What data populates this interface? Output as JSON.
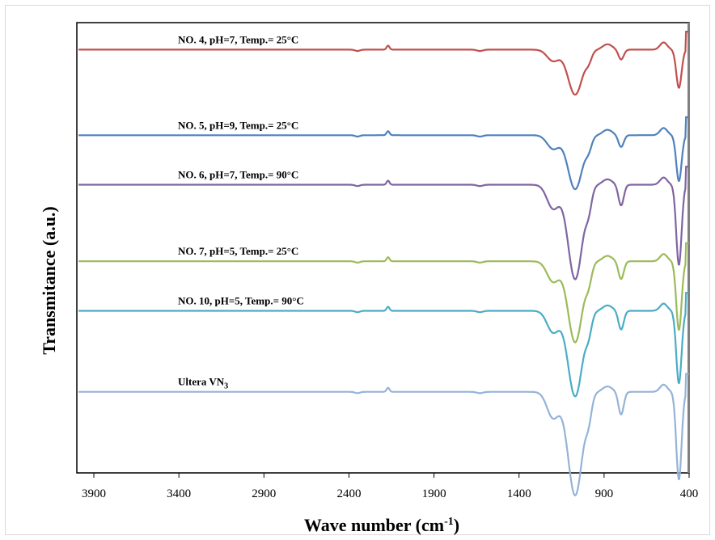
{
  "chart_data": {
    "type": "line",
    "title": "",
    "xlabel": "Wave number (cm",
    "xlabel_sup": "-1",
    "xlabel_end": ")",
    "ylabel": "Transmitance (a.u.)",
    "x_reversed": true,
    "xlim": [
      4000,
      400
    ],
    "xticks": [
      "3900",
      "3400",
      "2900",
      "2400",
      "1900",
      "1400",
      "900",
      "400"
    ],
    "grid": false,
    "series": [
      {
        "name": "NO. 4, pH=7, Temp.= 25°C",
        "color": "#c0504d",
        "baseline": 94
      },
      {
        "name": "NO. 5, pH=9, Temp.= 25°C",
        "color": "#4f81bd",
        "baseline": 75
      },
      {
        "name": "NO. 6, pH=7, Temp.= 90°C",
        "color": "#8064a2",
        "baseline": 64
      },
      {
        "name": "NO. 7, pH=5, Temp.= 25°C",
        "color": "#9bbb59",
        "baseline": 47
      },
      {
        "name": "NO. 10, pH=5, Temp.= 90°C",
        "color": "#4bacc6",
        "baseline": 36
      },
      {
        "name": "Ultera VN",
        "name_sub": "3",
        "color": "#95b3d7",
        "baseline": 18
      }
    ]
  }
}
